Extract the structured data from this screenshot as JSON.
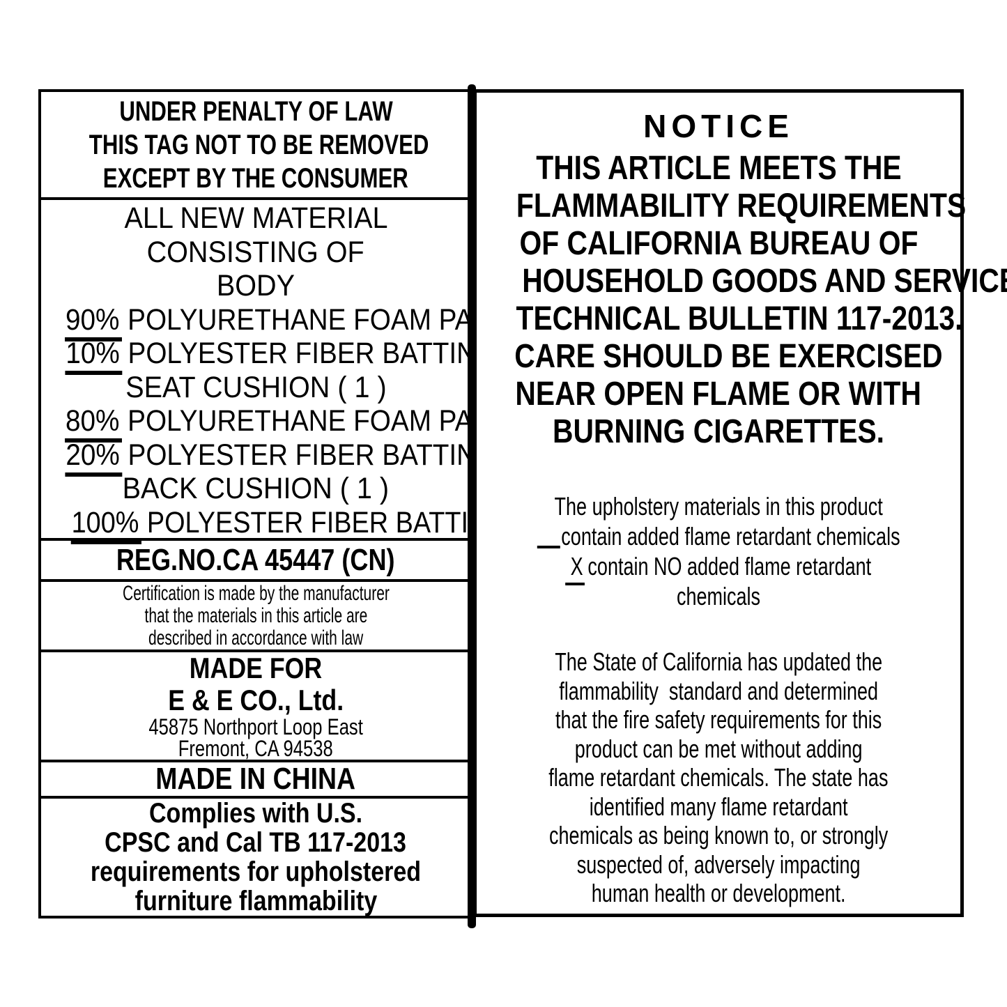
{
  "colors": {
    "ink": "#000000",
    "paper": "#ffffff"
  },
  "left_panel": {
    "header_lines": [
      "UNDER PENALTY OF LAW",
      "THIS TAG NOT TO BE REMOVED",
      "EXCEPT BY THE CONSUMER"
    ],
    "materials": {
      "intro_lines": [
        "ALL NEW MATERIAL",
        "CONSISTING OF",
        "BODY"
      ],
      "rows": [
        {
          "pct": "90%",
          "text": "POLYURETHANE FOAM PAD"
        },
        {
          "pct": "10%",
          "text": "POLYESTER FIBER BATTING"
        },
        {
          "label": "SEAT CUSHION ( 1 )"
        },
        {
          "pct": "80%",
          "text": "POLYURETHANE FOAM PAD"
        },
        {
          "pct": "20%",
          "text": "POLYESTER FIBER BATTING"
        },
        {
          "label": "BACK CUSHION ( 1 )"
        },
        {
          "pct": "100%",
          "text": "POLYESTER FIBER BATTING"
        }
      ]
    },
    "reg_no": "REG.NO.CA 45447 (CN)",
    "certification_lines": [
      "Certification is made by the manufacturer",
      "that the materials in this article are",
      "described in accordance with law"
    ],
    "made_for": {
      "title": "MADE FOR",
      "company": "E & E CO., Ltd.",
      "address_lines": [
        "45875 Northport Loop East",
        "Fremont, CA 94538"
      ]
    },
    "made_in": "MADE IN CHINA",
    "compliance_lines": [
      "Complies with U.S.",
      "CPSC and Cal TB 117-2013",
      "requirements for upholstered",
      "furniture flammability"
    ]
  },
  "right_panel": {
    "notice_title": "NOTICE",
    "notice_lines": [
      "THIS ARTICLE MEETS THE",
      "FLAMMABILITY REQUIREMENTS",
      "OF CALIFORNIA BUREAU OF",
      "HOUSEHOLD GOODS AND SERVICES",
      "TECHNICAL BULLETIN 117-2013.",
      "CARE SHOULD BE EXERCISED",
      "NEAR OPEN FLAME OR WITH",
      "BURNING CIGARETTES."
    ],
    "flame_retardant": {
      "intro": "The upholstery materials in this product",
      "option_added": "contain added flame retardant chemicals",
      "option_none_mark": "X",
      "option_none": "contain NO added flame retardant",
      "option_none_tail": "chemicals"
    },
    "state_lines": [
      "The State of California has updated the",
      "flammability  standard and determined",
      "that the fire safety requirements for this",
      "product can be met without adding",
      "flame retardant chemicals. The state has",
      "identified many flame retardant",
      "chemicals as being known to, or strongly",
      "suspected of, adversely impacting",
      "human health or development."
    ]
  }
}
